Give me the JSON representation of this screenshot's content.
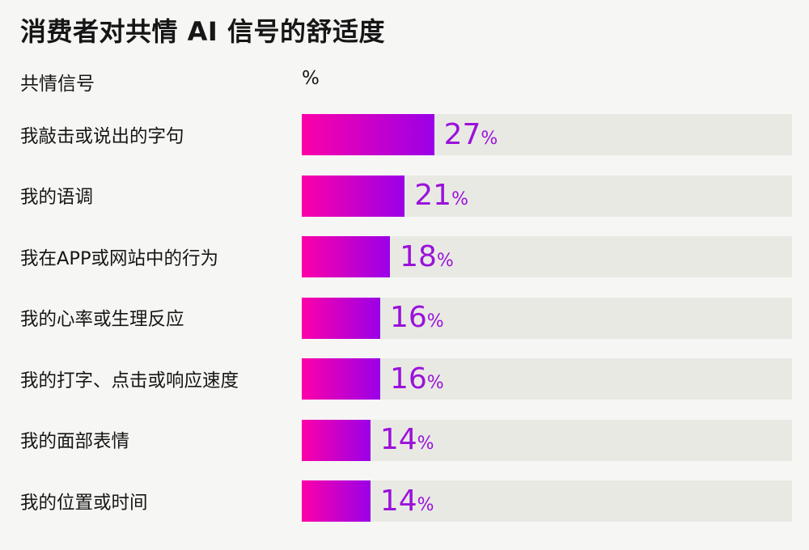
{
  "page": {
    "background": "#f6f6f4"
  },
  "chart_data": {
    "type": "bar",
    "orientation": "horizontal",
    "title": "消费者对共情 AI 信号的舒适度",
    "column_headers": [
      "共情信号",
      "%"
    ],
    "categories": [
      "我敲击或说出的字句",
      "我的语调",
      "我在APP或网站中的行为",
      "我的心率或生理反应",
      "我的打字、点击或响应速度",
      "我的面部表情",
      "我的位置或时间"
    ],
    "values": [
      27,
      21,
      18,
      16,
      16,
      14,
      14
    ],
    "unit": "%",
    "xlim": [
      0,
      100
    ],
    "legend": "none",
    "grid": "off",
    "bar_gradient_start": "#fc00a8",
    "bar_gradient_end": "#9b00e8",
    "track_color": "#e9e9e4",
    "value_color": "#9a12da",
    "text_color": "#161616"
  }
}
